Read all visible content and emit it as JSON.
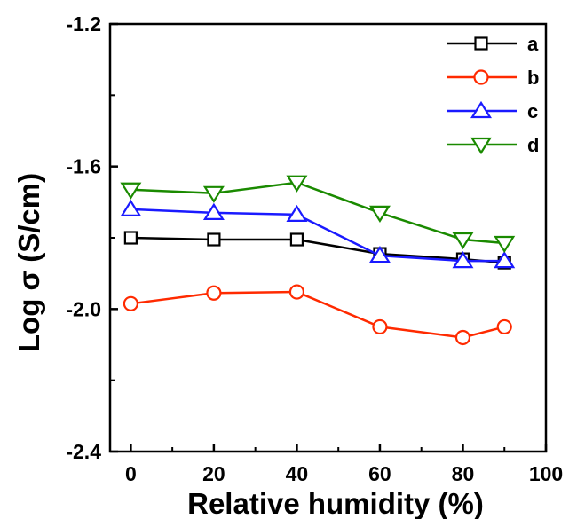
{
  "chart_data": {
    "type": "line",
    "title": "",
    "xlabel": "Relative humidity (%)",
    "ylabel": "Log σ (S/cm)",
    "xlim": [
      -5,
      100
    ],
    "ylim": [
      -2.4,
      -1.2
    ],
    "xticks": [
      0,
      20,
      40,
      60,
      80,
      100
    ],
    "yticks": [
      -1.2,
      -1.6,
      -2.0,
      -2.4
    ],
    "xtick_labels": [
      "0",
      "20",
      "40",
      "60",
      "80",
      "100"
    ],
    "ytick_labels": [
      "-1.2",
      "-1.6",
      "-2.0",
      "-2.4"
    ],
    "grid": false,
    "legend_position": "top-right",
    "x": [
      0,
      20,
      40,
      60,
      80,
      90
    ],
    "series": [
      {
        "name": "a",
        "color": "#000000",
        "marker": "square",
        "values": [
          -1.8,
          -1.805,
          -1.805,
          -1.845,
          -1.86,
          -1.87
        ]
      },
      {
        "name": "b",
        "color": "#ff2a00",
        "marker": "circle",
        "values": [
          -1.985,
          -1.955,
          -1.952,
          -2.05,
          -2.08,
          -2.05
        ]
      },
      {
        "name": "c",
        "color": "#1a1aff",
        "marker": "triangle-up",
        "values": [
          -1.72,
          -1.73,
          -1.735,
          -1.85,
          -1.865,
          -1.865
        ]
      },
      {
        "name": "d",
        "color": "#1a8a00",
        "marker": "triangle-down",
        "values": [
          -1.665,
          -1.675,
          -1.645,
          -1.73,
          -1.805,
          -1.815
        ]
      }
    ]
  }
}
